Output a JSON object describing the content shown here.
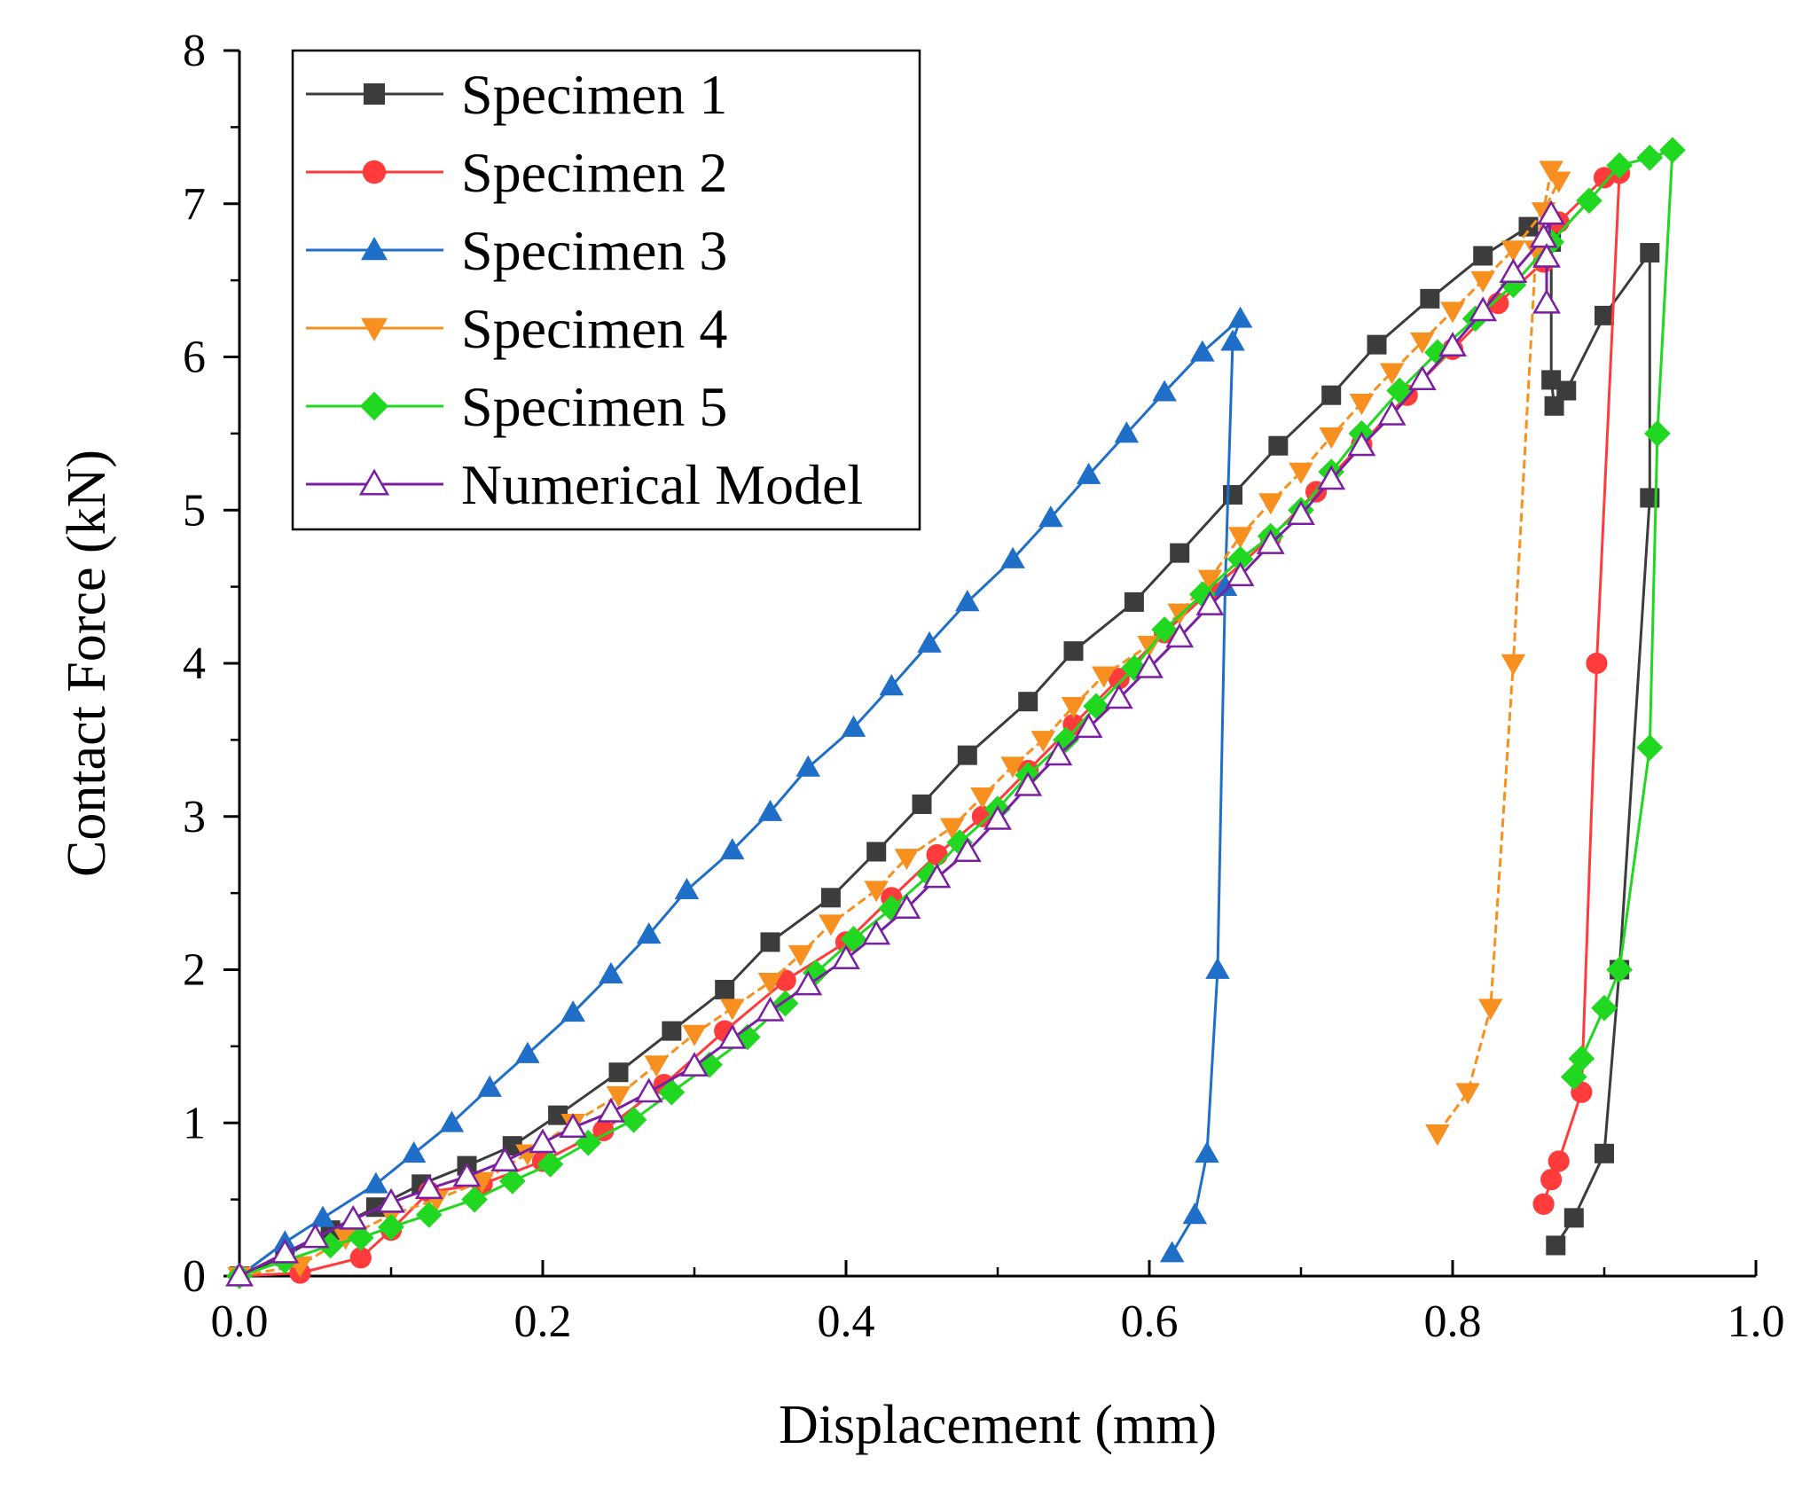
{
  "chart_data": {
    "type": "line",
    "title": "",
    "xlabel": "Displacement (mm)",
    "ylabel": "Contact Force (kN)",
    "xlim": [
      0.0,
      1.0
    ],
    "ylim": [
      0,
      8
    ],
    "xticks": [
      0.0,
      0.2,
      0.4,
      0.6,
      0.8,
      1.0
    ],
    "xtick_labels": [
      "0.0",
      "0.2",
      "0.4",
      "0.6",
      "0.8",
      "1.0"
    ],
    "yticks": [
      0,
      1,
      2,
      3,
      4,
      5,
      6,
      7,
      8
    ],
    "ytick_labels": [
      "0",
      "1",
      "2",
      "3",
      "4",
      "5",
      "6",
      "7",
      "8"
    ],
    "grid": false,
    "legend_position": "top-left",
    "series": [
      {
        "name": "Specimen 1",
        "color": "#3c3c3c",
        "marker": "square",
        "fill": true,
        "points": [
          [
            0.0,
            0.0
          ],
          [
            0.03,
            0.13
          ],
          [
            0.06,
            0.3
          ],
          [
            0.09,
            0.45
          ],
          [
            0.12,
            0.6
          ],
          [
            0.15,
            0.72
          ],
          [
            0.18,
            0.85
          ],
          [
            0.21,
            1.05
          ],
          [
            0.25,
            1.33
          ],
          [
            0.285,
            1.6
          ],
          [
            0.32,
            1.87
          ],
          [
            0.35,
            2.18
          ],
          [
            0.39,
            2.47
          ],
          [
            0.42,
            2.77
          ],
          [
            0.45,
            3.08
          ],
          [
            0.48,
            3.4
          ],
          [
            0.52,
            3.75
          ],
          [
            0.55,
            4.08
          ],
          [
            0.59,
            4.4
          ],
          [
            0.62,
            4.72
          ],
          [
            0.655,
            5.1
          ],
          [
            0.685,
            5.42
          ],
          [
            0.72,
            5.75
          ],
          [
            0.75,
            6.08
          ],
          [
            0.785,
            6.38
          ],
          [
            0.82,
            6.66
          ],
          [
            0.85,
            6.85
          ],
          [
            0.865,
            6.75
          ],
          [
            0.865,
            5.85
          ],
          [
            0.867,
            5.68
          ],
          [
            0.875,
            5.78
          ],
          [
            0.9,
            6.27
          ],
          [
            0.93,
            6.68
          ],
          [
            0.93,
            5.08
          ],
          [
            0.91,
            2.0
          ],
          [
            0.9,
            0.8
          ],
          [
            0.88,
            0.38
          ],
          [
            0.868,
            0.2
          ]
        ]
      },
      {
        "name": "Specimen 2",
        "color": "#ff3b3b",
        "marker": "circle",
        "fill": true,
        "points": [
          [
            0.0,
            0.0
          ],
          [
            0.04,
            0.02
          ],
          [
            0.08,
            0.12
          ],
          [
            0.1,
            0.3
          ],
          [
            0.125,
            0.55
          ],
          [
            0.16,
            0.6
          ],
          [
            0.2,
            0.75
          ],
          [
            0.24,
            0.95
          ],
          [
            0.28,
            1.25
          ],
          [
            0.32,
            1.6
          ],
          [
            0.36,
            1.93
          ],
          [
            0.4,
            2.18
          ],
          [
            0.43,
            2.47
          ],
          [
            0.46,
            2.75
          ],
          [
            0.49,
            3.0
          ],
          [
            0.52,
            3.3
          ],
          [
            0.55,
            3.6
          ],
          [
            0.58,
            3.9
          ],
          [
            0.61,
            4.2
          ],
          [
            0.64,
            4.47
          ],
          [
            0.68,
            4.82
          ],
          [
            0.71,
            5.12
          ],
          [
            0.74,
            5.43
          ],
          [
            0.77,
            5.75
          ],
          [
            0.8,
            6.05
          ],
          [
            0.83,
            6.35
          ],
          [
            0.86,
            6.62
          ],
          [
            0.87,
            6.88
          ],
          [
            0.9,
            7.17
          ],
          [
            0.91,
            7.2
          ],
          [
            0.895,
            4.0
          ],
          [
            0.885,
            1.2
          ],
          [
            0.87,
            0.75
          ],
          [
            0.865,
            0.63
          ],
          [
            0.86,
            0.47
          ]
        ]
      },
      {
        "name": "Specimen 3",
        "color": "#1f6fc8",
        "marker": "triangle-up",
        "fill": true,
        "points": [
          [
            0.0,
            0.0
          ],
          [
            0.03,
            0.22
          ],
          [
            0.055,
            0.38
          ],
          [
            0.09,
            0.6
          ],
          [
            0.115,
            0.8
          ],
          [
            0.14,
            1.0
          ],
          [
            0.165,
            1.23
          ],
          [
            0.19,
            1.45
          ],
          [
            0.22,
            1.72
          ],
          [
            0.245,
            1.97
          ],
          [
            0.27,
            2.23
          ],
          [
            0.295,
            2.52
          ],
          [
            0.325,
            2.78
          ],
          [
            0.35,
            3.03
          ],
          [
            0.375,
            3.32
          ],
          [
            0.405,
            3.58
          ],
          [
            0.43,
            3.85
          ],
          [
            0.455,
            4.13
          ],
          [
            0.48,
            4.4
          ],
          [
            0.51,
            4.68
          ],
          [
            0.535,
            4.95
          ],
          [
            0.56,
            5.23
          ],
          [
            0.585,
            5.5
          ],
          [
            0.61,
            5.77
          ],
          [
            0.635,
            6.03
          ],
          [
            0.66,
            6.25
          ],
          [
            0.655,
            6.1
          ],
          [
            0.65,
            4.5
          ],
          [
            0.645,
            2.0
          ],
          [
            0.638,
            0.8
          ],
          [
            0.63,
            0.4
          ],
          [
            0.615,
            0.15
          ]
        ]
      },
      {
        "name": "Specimen 4",
        "color": "#f7901e",
        "marker": "triangle-down",
        "fill": true,
        "points": [
          [
            0.0,
            0.0
          ],
          [
            0.04,
            0.07
          ],
          [
            0.07,
            0.25
          ],
          [
            0.1,
            0.4
          ],
          [
            0.13,
            0.5
          ],
          [
            0.16,
            0.62
          ],
          [
            0.19,
            0.8
          ],
          [
            0.22,
            1.0
          ],
          [
            0.25,
            1.18
          ],
          [
            0.275,
            1.38
          ],
          [
            0.3,
            1.58
          ],
          [
            0.325,
            1.75
          ],
          [
            0.35,
            1.92
          ],
          [
            0.37,
            2.1
          ],
          [
            0.39,
            2.3
          ],
          [
            0.42,
            2.52
          ],
          [
            0.44,
            2.73
          ],
          [
            0.47,
            2.93
          ],
          [
            0.49,
            3.13
          ],
          [
            0.51,
            3.33
          ],
          [
            0.53,
            3.5
          ],
          [
            0.55,
            3.72
          ],
          [
            0.57,
            3.92
          ],
          [
            0.6,
            4.12
          ],
          [
            0.62,
            4.33
          ],
          [
            0.64,
            4.55
          ],
          [
            0.66,
            4.83
          ],
          [
            0.68,
            5.05
          ],
          [
            0.7,
            5.25
          ],
          [
            0.72,
            5.48
          ],
          [
            0.74,
            5.7
          ],
          [
            0.76,
            5.9
          ],
          [
            0.78,
            6.1
          ],
          [
            0.8,
            6.3
          ],
          [
            0.82,
            6.5
          ],
          [
            0.84,
            6.7
          ],
          [
            0.86,
            6.95
          ],
          [
            0.87,
            7.15
          ],
          [
            0.865,
            7.22
          ],
          [
            0.855,
            6.7
          ],
          [
            0.84,
            4.0
          ],
          [
            0.825,
            1.75
          ],
          [
            0.81,
            1.2
          ],
          [
            0.79,
            0.93
          ]
        ]
      },
      {
        "name": "Specimen 5",
        "color": "#1fd81f",
        "marker": "diamond",
        "fill": true,
        "points": [
          [
            0.0,
            0.0
          ],
          [
            0.03,
            0.1
          ],
          [
            0.06,
            0.2
          ],
          [
            0.08,
            0.25
          ],
          [
            0.1,
            0.32
          ],
          [
            0.125,
            0.4
          ],
          [
            0.155,
            0.5
          ],
          [
            0.18,
            0.62
          ],
          [
            0.205,
            0.73
          ],
          [
            0.23,
            0.87
          ],
          [
            0.26,
            1.02
          ],
          [
            0.285,
            1.2
          ],
          [
            0.31,
            1.38
          ],
          [
            0.335,
            1.56
          ],
          [
            0.36,
            1.78
          ],
          [
            0.38,
            1.98
          ],
          [
            0.405,
            2.2
          ],
          [
            0.43,
            2.4
          ],
          [
            0.455,
            2.62
          ],
          [
            0.475,
            2.83
          ],
          [
            0.5,
            3.05
          ],
          [
            0.52,
            3.27
          ],
          [
            0.545,
            3.5
          ],
          [
            0.565,
            3.72
          ],
          [
            0.59,
            3.97
          ],
          [
            0.61,
            4.22
          ],
          [
            0.635,
            4.45
          ],
          [
            0.66,
            4.68
          ],
          [
            0.68,
            4.83
          ],
          [
            0.7,
            5.0
          ],
          [
            0.72,
            5.25
          ],
          [
            0.74,
            5.5
          ],
          [
            0.765,
            5.78
          ],
          [
            0.79,
            6.03
          ],
          [
            0.815,
            6.25
          ],
          [
            0.84,
            6.47
          ],
          [
            0.865,
            6.75
          ],
          [
            0.89,
            7.02
          ],
          [
            0.91,
            7.25
          ],
          [
            0.93,
            7.3
          ],
          [
            0.945,
            7.35
          ],
          [
            0.935,
            5.5
          ],
          [
            0.93,
            3.45
          ],
          [
            0.91,
            2.0
          ],
          [
            0.9,
            1.75
          ],
          [
            0.885,
            1.42
          ],
          [
            0.88,
            1.3
          ]
        ]
      },
      {
        "name": "Numerical Model",
        "color": "#7a1fa2",
        "marker": "triangle-up-open",
        "fill": false,
        "points": [
          [
            0.0,
            0.0
          ],
          [
            0.03,
            0.15
          ],
          [
            0.05,
            0.25
          ],
          [
            0.075,
            0.37
          ],
          [
            0.1,
            0.48
          ],
          [
            0.125,
            0.57
          ],
          [
            0.15,
            0.65
          ],
          [
            0.175,
            0.75
          ],
          [
            0.2,
            0.87
          ],
          [
            0.22,
            0.97
          ],
          [
            0.245,
            1.07
          ],
          [
            0.27,
            1.2
          ],
          [
            0.3,
            1.37
          ],
          [
            0.325,
            1.55
          ],
          [
            0.35,
            1.73
          ],
          [
            0.375,
            1.9
          ],
          [
            0.4,
            2.07
          ],
          [
            0.42,
            2.23
          ],
          [
            0.44,
            2.4
          ],
          [
            0.46,
            2.6
          ],
          [
            0.48,
            2.77
          ],
          [
            0.5,
            2.98
          ],
          [
            0.52,
            3.2
          ],
          [
            0.54,
            3.4
          ],
          [
            0.56,
            3.58
          ],
          [
            0.58,
            3.77
          ],
          [
            0.6,
            3.97
          ],
          [
            0.62,
            4.17
          ],
          [
            0.64,
            4.38
          ],
          [
            0.66,
            4.57
          ],
          [
            0.68,
            4.78
          ],
          [
            0.7,
            4.97
          ],
          [
            0.72,
            5.2
          ],
          [
            0.74,
            5.42
          ],
          [
            0.76,
            5.62
          ],
          [
            0.78,
            5.85
          ],
          [
            0.8,
            6.07
          ],
          [
            0.82,
            6.3
          ],
          [
            0.84,
            6.55
          ],
          [
            0.86,
            6.78
          ],
          [
            0.865,
            6.93
          ],
          [
            0.862,
            6.65
          ],
          [
            0.862,
            6.35
          ]
        ]
      }
    ]
  }
}
